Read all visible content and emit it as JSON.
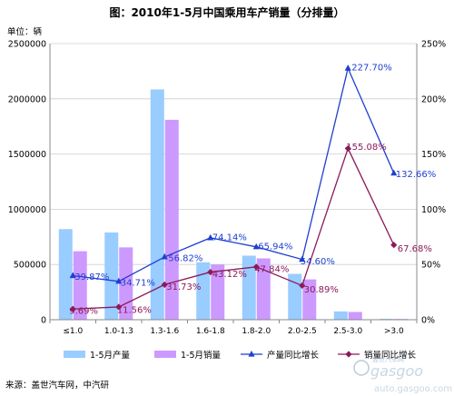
{
  "chart_data": {
    "type": "bar",
    "title": "图：2010年1-5月中国乘用车产销量（分排量）",
    "ylabel_left": "单位：辆",
    "categories": [
      "≤1.0",
      "1.0-1.3",
      "1.3-1.6",
      "1.6-1.8",
      "1.8-2.0",
      "2.0-2.5",
      "2.5-3.0",
      ">3.0"
    ],
    "ylim_left": [
      0,
      2500000
    ],
    "yticks_left": [
      "0",
      "500000",
      "1000000",
      "1500000",
      "2000000",
      "2500000"
    ],
    "ylim_right": [
      0,
      2.5
    ],
    "yticks_right": [
      "0%",
      "50%",
      "100%",
      "150%",
      "200%",
      "250%"
    ],
    "series": [
      {
        "name": "1-5月产量",
        "kind": "bar",
        "values": [
          820000,
          790000,
          2085000,
          520000,
          580000,
          415000,
          75000,
          8000
        ]
      },
      {
        "name": "1-5月销量",
        "kind": "bar",
        "values": [
          620000,
          655000,
          1810000,
          500000,
          555000,
          365000,
          70000,
          7000
        ]
      },
      {
        "name": "产量同比增长",
        "kind": "line",
        "axis": "right",
        "values": [
          0.3987,
          0.3471,
          0.5682,
          0.7414,
          0.6594,
          0.546,
          2.277,
          1.3266
        ],
        "labels": [
          "39.87%",
          "34.71%",
          "56.82%",
          "74.14%",
          "65.94%",
          "54.60%",
          "227.70%",
          "132.66%"
        ]
      },
      {
        "name": "销量同比增长",
        "kind": "line",
        "axis": "right",
        "values": [
          0.0969,
          0.1156,
          0.3173,
          0.4312,
          0.4784,
          0.3089,
          1.5508,
          0.6768
        ],
        "labels": [
          "9.69%",
          "11.56%",
          "31.73%",
          "43.12%",
          "47.84%",
          "30.89%",
          "155.08%",
          "67.68%"
        ]
      }
    ],
    "grid": "horizontal",
    "legend": "bottom",
    "colors": {
      "bar1": "#99ccff",
      "bar2": "#cc99ff",
      "line1": "#1f3fd0",
      "line2": "#8b1a5a"
    }
  },
  "source": "来源：盖世汽车网，中汽研",
  "watermark": {
    "line1": "盖世汽车网",
    "brand": "gasgoo",
    "url": "auto.gasgoo.com"
  }
}
